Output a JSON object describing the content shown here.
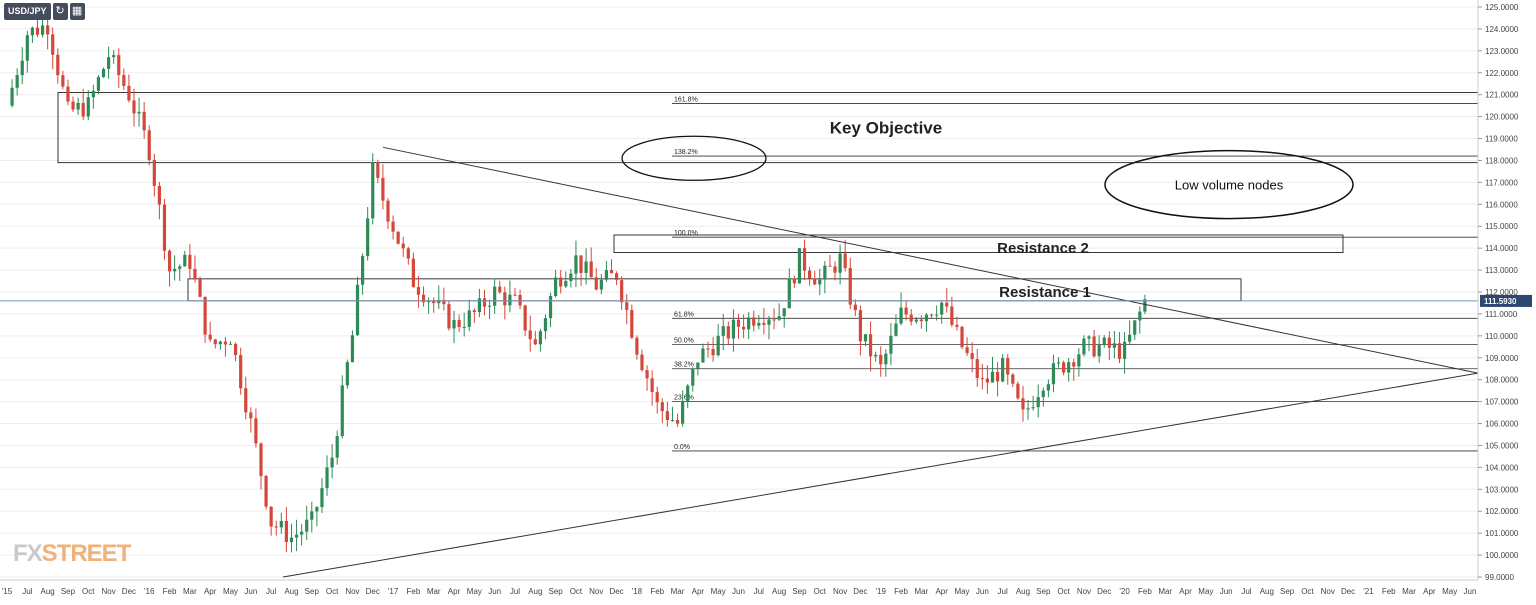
{
  "toolbar": {
    "symbol": "USD/JPY",
    "refresh_icon": "refresh-icon",
    "calendar_icon": "calendar-icon"
  },
  "logo": {
    "fx": "FX",
    "street": "STREET"
  },
  "colors": {
    "up": "#2e8b57",
    "down": "#d4483b",
    "grid": "#eeeeee",
    "price_line": "#7b96b8",
    "price_tag_bg": "#2c4770",
    "annotation": "#222222"
  },
  "chart_data": {
    "type": "candlestick",
    "instrument": "USD/JPY",
    "timeframe": "weekly",
    "ylim": [
      99.0,
      125.0
    ],
    "y_ticks": [
      "125.0000",
      "124.0000",
      "123.0000",
      "122.0000",
      "121.0000",
      "120.0000",
      "119.0000",
      "118.0000",
      "117.0000",
      "116.0000",
      "115.0000",
      "114.0000",
      "113.0000",
      "112.0000",
      "111.0000",
      "110.0000",
      "109.0000",
      "108.0000",
      "107.0000",
      "106.0000",
      "105.0000",
      "104.0000",
      "103.0000",
      "102.0000",
      "101.0000",
      "100.0000",
      "99.0000"
    ],
    "x_ticks": [
      "'15",
      "Jul",
      "Aug",
      "Sep",
      "Oct",
      "Nov",
      "Dec",
      "'16",
      "Feb",
      "Mar",
      "Apr",
      "May",
      "Jun",
      "Jul",
      "Aug",
      "Sep",
      "Oct",
      "Nov",
      "Dec",
      "'17",
      "Feb",
      "Mar",
      "Apr",
      "May",
      "Jun",
      "Jul",
      "Aug",
      "Sep",
      "Oct",
      "Nov",
      "Dec",
      "'18",
      "Feb",
      "Mar",
      "Apr",
      "May",
      "Jun",
      "Jul",
      "Aug",
      "Sep",
      "Oct",
      "Nov",
      "Dec",
      "'19",
      "Feb",
      "Mar",
      "Apr",
      "May",
      "Jun",
      "Jul",
      "Aug",
      "Sep",
      "Oct",
      "Nov",
      "Dec",
      "'20",
      "Feb",
      "Mar",
      "Apr",
      "May",
      "Jun",
      "Jul",
      "Aug",
      "Sep",
      "Oct",
      "Nov",
      "Dec",
      "'21",
      "Feb",
      "Mar",
      "Apr",
      "May",
      "Jun"
    ],
    "last_price": 111.593,
    "last_price_label": "111.5930",
    "price_path": [
      [
        "'15",
        120.5
      ],
      [
        "Jul",
        123.8
      ],
      [
        "Aug",
        124.2
      ],
      [
        "Sep",
        120.2
      ],
      [
        "Oct",
        120.5
      ],
      [
        "Nov",
        122.8
      ],
      [
        "Dec",
        121.0
      ],
      [
        "'16",
        118.5
      ],
      [
        "Feb",
        113.0
      ],
      [
        "Mar",
        113.4
      ],
      [
        "Apr",
        109.5
      ],
      [
        "May",
        110.0
      ],
      [
        "Jun",
        106.0
      ],
      [
        "Jul",
        101.5
      ],
      [
        "Aug",
        100.8
      ],
      [
        "Sep",
        101.5
      ],
      [
        "Oct",
        104.5
      ],
      [
        "Nov",
        110.0
      ],
      [
        "Dec",
        117.5
      ],
      [
        "'17",
        115.0
      ],
      [
        "Feb",
        112.5
      ],
      [
        "Mar",
        111.5
      ],
      [
        "Apr",
        110.5
      ],
      [
        "May",
        111.0
      ],
      [
        "Jun",
        112.0
      ],
      [
        "Jul",
        111.5
      ],
      [
        "Aug",
        109.5
      ],
      [
        "Sep",
        112.5
      ],
      [
        "Oct",
        113.5
      ],
      [
        "Nov",
        112.3
      ],
      [
        "Dec",
        112.8
      ],
      [
        "'18",
        109.5
      ],
      [
        "Feb",
        106.8
      ],
      [
        "Mar",
        106.0
      ],
      [
        "Apr",
        109.0
      ],
      [
        "May",
        109.8
      ],
      [
        "Jun",
        110.5
      ],
      [
        "Jul",
        111.0
      ],
      [
        "Aug",
        111.0
      ],
      [
        "Sep",
        113.5
      ],
      [
        "Oct",
        112.5
      ],
      [
        "Nov",
        113.5
      ],
      [
        "Dec",
        110.0
      ],
      [
        "'19",
        108.5
      ],
      [
        "Feb",
        111.0
      ],
      [
        "Mar",
        111.0
      ],
      [
        "Apr",
        111.5
      ],
      [
        "May",
        109.5
      ],
      [
        "Jun",
        107.8
      ],
      [
        "Jul",
        108.5
      ],
      [
        "Aug",
        106.3
      ],
      [
        "Sep",
        108.0
      ],
      [
        "Oct",
        108.7
      ],
      [
        "Nov",
        109.5
      ],
      [
        "Dec",
        109.5
      ],
      [
        "'20",
        109.3
      ],
      [
        "Feb",
        111.6
      ]
    ],
    "fibonacci": [
      {
        "label": "0.0%",
        "price": 104.75
      },
      {
        "label": "23.6%",
        "price": 107.0
      },
      {
        "label": "38.2%",
        "price": 108.5
      },
      {
        "label": "50.0%",
        "price": 109.6
      },
      {
        "label": "61.8%",
        "price": 110.8
      },
      {
        "label": "100.0%",
        "price": 114.5
      },
      {
        "label": "138.2%",
        "price": 118.2
      },
      {
        "label": "161.8%",
        "price": 120.6
      }
    ],
    "zones": [
      {
        "label": "Key Objective",
        "from": "Aug",
        "from_year": 2015,
        "to_year_end": true,
        "price_low": 117.9,
        "price_high": 121.1
      },
      {
        "label": "Resistance 2",
        "price_low": 113.8,
        "price_high": 114.6
      },
      {
        "label": "Resistance  1",
        "price_low": 111.6,
        "price_high": 112.6
      }
    ],
    "ellipse_labels": [
      "Low volume nodes"
    ],
    "trendlines": [
      {
        "name": "descending",
        "from_price": 118.6,
        "to_price": 108.3
      },
      {
        "name": "ascending",
        "from_price": 99.0,
        "to_price": 108.3
      }
    ]
  },
  "annotations": {
    "key_objective": "Key Objective",
    "resistance_2": "Resistance 2",
    "resistance_1": "Resistance  1",
    "low_volume_nodes": "Low volume nodes"
  }
}
